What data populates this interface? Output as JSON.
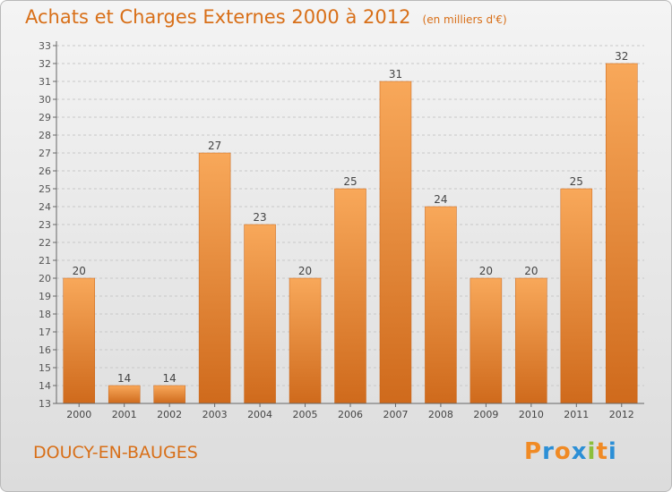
{
  "title": "Achats et Charges Externes 2000 à 2012",
  "subtitle": "(en milliers d'€)",
  "location": "DOUCY-EN-BAUGES",
  "logo": {
    "text": "Proxiti",
    "letter_colors": [
      "#f08a24",
      "#2c8fd6",
      "#f08a24",
      "#2c8fd6",
      "#8cbf3c",
      "#f08a24",
      "#2c8fd6"
    ]
  },
  "colors": {
    "accent": "#d86f18",
    "bar_top": "#f8a85a",
    "bar_bottom": "#cf6a1c"
  },
  "chart_data": {
    "type": "bar",
    "categories": [
      "2000",
      "2001",
      "2002",
      "2003",
      "2004",
      "2005",
      "2006",
      "2007",
      "2008",
      "2009",
      "2010",
      "2011",
      "2012"
    ],
    "values": [
      20,
      14,
      14,
      27,
      23,
      20,
      25,
      31,
      24,
      20,
      20,
      25,
      32
    ],
    "yticks": [
      13,
      14,
      15,
      16,
      17,
      18,
      19,
      20,
      21,
      22,
      23,
      24,
      25,
      26,
      27,
      28,
      29,
      30,
      31,
      32,
      33
    ],
    "ylim": [
      13,
      33
    ],
    "grid": true,
    "data_labels": true
  }
}
